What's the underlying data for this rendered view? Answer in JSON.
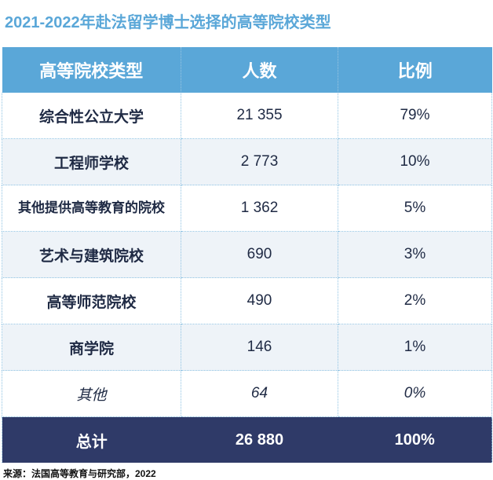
{
  "title": "2021-2022年赴法留学博士选择的高等院校类型",
  "headers": [
    "高等院校类型",
    "人数",
    "比例"
  ],
  "rows": [
    {
      "type": "综合性公立大学",
      "count": "21 355",
      "ratio": "79%"
    },
    {
      "type": "工程师学校",
      "count": "2 773",
      "ratio": "10%"
    },
    {
      "type": "其他提供高等教育的院校",
      "count": "1 362",
      "ratio": "5%"
    },
    {
      "type": "艺术与建筑院校",
      "count": "690",
      "ratio": "3%"
    },
    {
      "type": "高等师范院校",
      "count": "490",
      "ratio": "2%"
    },
    {
      "type": "商学院",
      "count": "146",
      "ratio": "1%"
    },
    {
      "type": "其他",
      "count": "64",
      "ratio": "0%"
    }
  ],
  "total": {
    "label": "总计",
    "count": "26 880",
    "ratio": "100%"
  },
  "source": "来源：法国高等教育与研究部，2022",
  "colors": {
    "header": "#5aa7d8",
    "total": "#2f3a68",
    "title": "#5aa7d8",
    "stripe": "#eef3f8"
  }
}
